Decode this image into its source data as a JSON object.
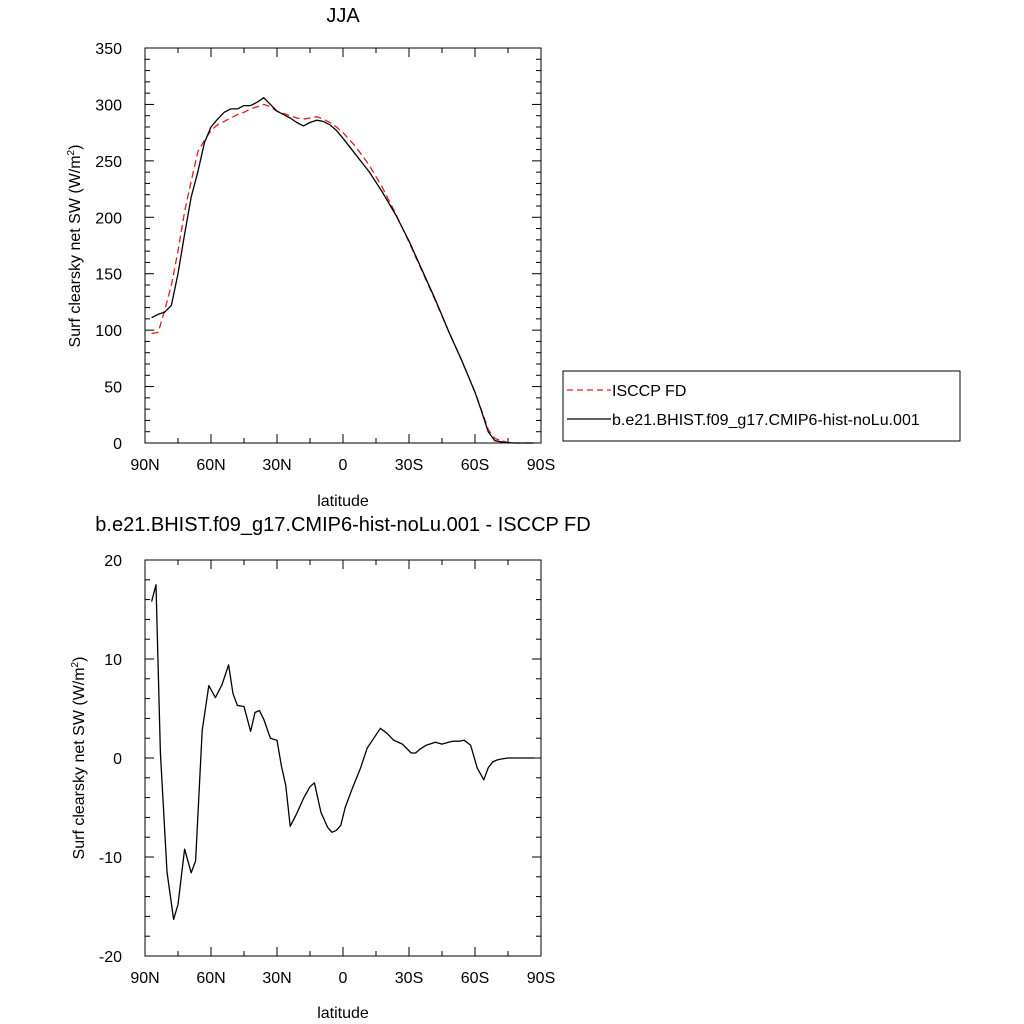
{
  "chart_data": [
    {
      "type": "line",
      "title": "JJA",
      "xlabel": "latitude",
      "ylabel_main": "Surf clearsky net SW (W/m",
      "ylabel_sup": "2",
      "ylabel_close": ")",
      "xlim": [
        90,
        -90
      ],
      "ylim": [
        0,
        350
      ],
      "x_ticks": [
        {
          "value": 90,
          "label": "90N"
        },
        {
          "value": 60,
          "label": "60N"
        },
        {
          "value": 30,
          "label": "30N"
        },
        {
          "value": 0,
          "label": "0"
        },
        {
          "value": -30,
          "label": "30S"
        },
        {
          "value": -60,
          "label": "60S"
        },
        {
          "value": -90,
          "label": "90S"
        }
      ],
      "y_ticks": [
        {
          "value": 0,
          "label": "0"
        },
        {
          "value": 50,
          "label": "50"
        },
        {
          "value": 100,
          "label": "100"
        },
        {
          "value": 150,
          "label": "150"
        },
        {
          "value": 200,
          "label": "200"
        },
        {
          "value": 250,
          "label": "250"
        },
        {
          "value": 300,
          "label": "300"
        },
        {
          "value": 350,
          "label": "350"
        }
      ],
      "legend_position": "right",
      "series": [
        {
          "name": "ISCCP FD",
          "color": "#e8191b",
          "dash": "dashed",
          "x": [
            87,
            84,
            81,
            78,
            75,
            72,
            69,
            66,
            63,
            60,
            57,
            54,
            51,
            48,
            45,
            42,
            39,
            36,
            33,
            30,
            27,
            24,
            21,
            18,
            15,
            12,
            9,
            6,
            3,
            0,
            -6,
            -12,
            -18,
            -24,
            -30,
            -36,
            -42,
            -48,
            -54,
            -60,
            -63,
            -66,
            -69,
            -72,
            -75,
            -78,
            -81,
            -84,
            -87
          ],
          "y": [
            97,
            98,
            118,
            140,
            170,
            205,
            232,
            258,
            268,
            277,
            282,
            285,
            288,
            291,
            293,
            296,
            298,
            300,
            298,
            294,
            292,
            290,
            288,
            287,
            288,
            289,
            287,
            284,
            280,
            275,
            262,
            246,
            226,
            203,
            178,
            152,
            126,
            99,
            73,
            45,
            29,
            12,
            4,
            2,
            0.5,
            0,
            0,
            0,
            0
          ]
        },
        {
          "name": "b.e21.BHIST.f09_g17.CMIP6-hist-noLu.001",
          "color": "#000000",
          "dash": "solid",
          "x": [
            87,
            84,
            81,
            78,
            75,
            72,
            69,
            66,
            63,
            60,
            57,
            54,
            51,
            48,
            45,
            42,
            39,
            36,
            33,
            30,
            27,
            24,
            21,
            18,
            15,
            12,
            9,
            6,
            3,
            0,
            -6,
            -12,
            -18,
            -24,
            -30,
            -36,
            -42,
            -48,
            -54,
            -60,
            -63,
            -66,
            -69,
            -72,
            -75,
            -78,
            -81,
            -84,
            -87
          ],
          "y": [
            111,
            114,
            116,
            122,
            150,
            185,
            218,
            240,
            266,
            280,
            287,
            293,
            296,
            296,
            299,
            299,
            302,
            306,
            300,
            294,
            291,
            288,
            284,
            281,
            284,
            286,
            285,
            282,
            277,
            270,
            255,
            240,
            222,
            202,
            179,
            153,
            127,
            99,
            73,
            45,
            28,
            10,
            2,
            1,
            0.3,
            0,
            0,
            0,
            0
          ]
        }
      ]
    },
    {
      "type": "line",
      "title": "b.e21.BHIST.f09_g17.CMIP6-hist-noLu.001 - ISCCP FD",
      "xlabel": "latitude",
      "ylabel_main": "Surf clearsky net SW (W/m",
      "ylabel_sup": "2",
      "ylabel_close": ")",
      "xlim": [
        90,
        -90
      ],
      "ylim": [
        -20,
        20
      ],
      "x_ticks": [
        {
          "value": 90,
          "label": "90N"
        },
        {
          "value": 60,
          "label": "60N"
        },
        {
          "value": 30,
          "label": "30N"
        },
        {
          "value": 0,
          "label": "0"
        },
        {
          "value": -30,
          "label": "30S"
        },
        {
          "value": -60,
          "label": "60S"
        },
        {
          "value": -90,
          "label": "90S"
        }
      ],
      "y_ticks": [
        {
          "value": -20,
          "label": "-20"
        },
        {
          "value": -10,
          "label": "-10"
        },
        {
          "value": 0,
          "label": "0"
        },
        {
          "value": 10,
          "label": "10"
        },
        {
          "value": 20,
          "label": "20"
        }
      ],
      "series": [
        {
          "color": "#000000",
          "dash": "solid",
          "x": [
            87,
            85,
            83,
            80,
            77,
            75,
            72,
            69,
            67,
            64,
            61,
            58,
            55,
            52,
            50,
            48,
            45,
            42,
            40,
            38,
            36,
            33,
            30,
            28,
            26,
            24,
            21,
            18,
            15,
            13,
            10,
            7,
            5,
            3,
            1,
            -1,
            -4,
            -8,
            -11,
            -14,
            -17,
            -20,
            -23,
            -27,
            -31,
            -33,
            -35,
            -38,
            -42,
            -45,
            -48,
            -50,
            -53,
            -55,
            -58,
            -61,
            -64,
            -66,
            -68,
            -70,
            -72,
            -75,
            -78,
            -81,
            -84,
            -87
          ],
          "y": [
            15.8,
            17.5,
            0.5,
            -11.5,
            -16.3,
            -14.8,
            -9.2,
            -11.6,
            -10.4,
            2.8,
            7.3,
            6.1,
            7.4,
            9.4,
            6.5,
            5.3,
            5.2,
            2.7,
            4.6,
            4.8,
            3.9,
            2.0,
            1.8,
            -0.8,
            -2.8,
            -6.9,
            -5.6,
            -4.1,
            -2.9,
            -2.5,
            -5.5,
            -7.0,
            -7.5,
            -7.3,
            -6.8,
            -5.0,
            -3.2,
            -1.0,
            1.0,
            2.0,
            3.0,
            2.5,
            1.8,
            1.4,
            0.5,
            0.5,
            0.9,
            1.3,
            1.6,
            1.4,
            1.6,
            1.7,
            1.7,
            1.8,
            1.3,
            -1.0,
            -2.2,
            -1.0,
            -0.4,
            -0.2,
            -0.1,
            0,
            0,
            0,
            0,
            0
          ]
        }
      ]
    }
  ],
  "legend": {
    "items": [
      {
        "label": "ISCCP FD",
        "color": "#e8191b",
        "dash": "dashed"
      },
      {
        "label": "b.e21.BHIST.f09_g17.CMIP6-hist-noLu.001",
        "color": "#000000",
        "dash": "solid"
      }
    ]
  }
}
